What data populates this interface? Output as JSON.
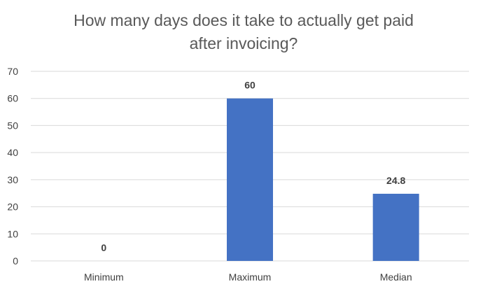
{
  "chart_data": {
    "type": "bar",
    "title_lines": [
      "How many days does it take to actually get paid",
      "after invoicing?"
    ],
    "categories": [
      "Minimum",
      "Maximum",
      "Median"
    ],
    "values": [
      0,
      60,
      24.8
    ],
    "data_labels": [
      "0",
      "60",
      "24.8"
    ],
    "ylim": [
      0,
      70
    ],
    "yticks": [
      0,
      10,
      20,
      30,
      40,
      50,
      60,
      70
    ],
    "grid": true,
    "bar_color": "#4472c4",
    "grid_color": "#d9d9d9",
    "text_color": "#404040",
    "title_color": "#595959"
  }
}
